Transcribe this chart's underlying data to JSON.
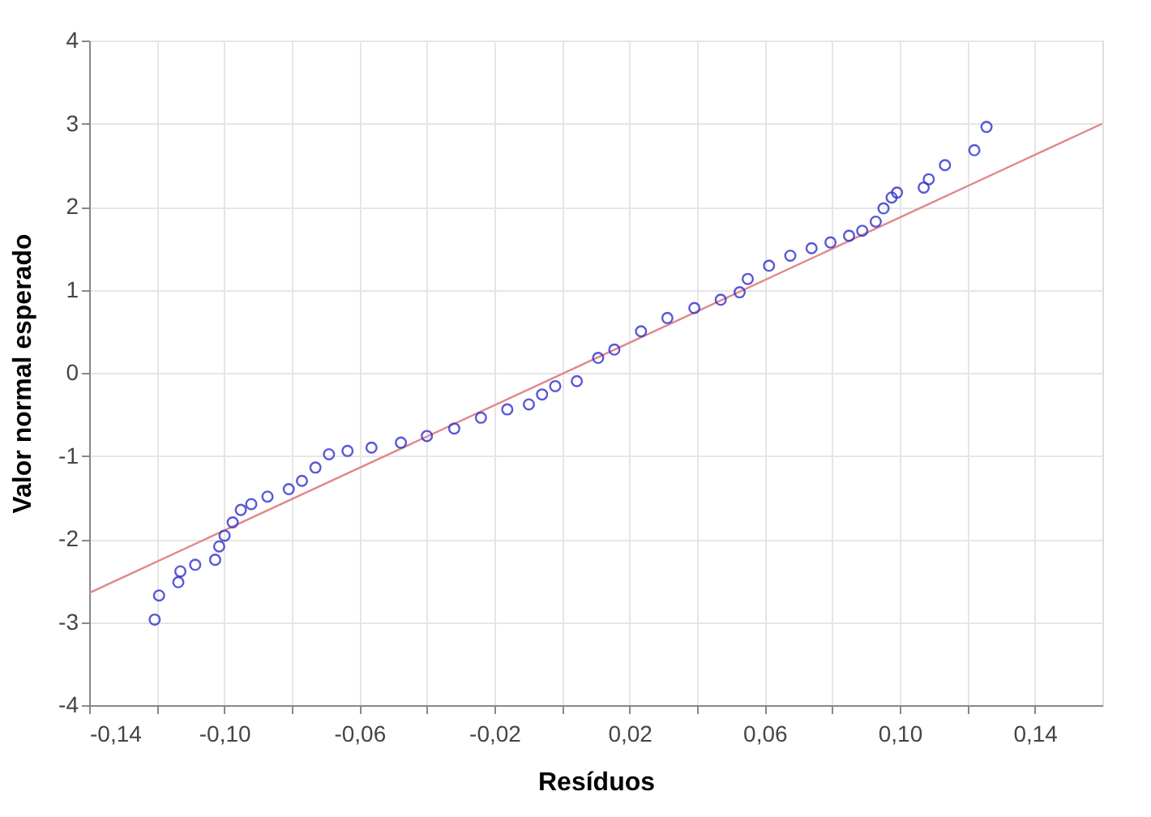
{
  "chart_data": {
    "type": "scatter",
    "xlabel": "Resíduos",
    "ylabel": "Valor normal esperado",
    "xlim": [
      -0.14,
      0.16
    ],
    "ylim": [
      -4,
      4
    ],
    "xticks": [
      {
        "value": -0.14,
        "label": "-0,14"
      },
      {
        "value": -0.12,
        "label": null
      },
      {
        "value": -0.1,
        "label": "-0,10"
      },
      {
        "value": -0.08,
        "label": null
      },
      {
        "value": -0.06,
        "label": "-0,06"
      },
      {
        "value": -0.04,
        "label": null
      },
      {
        "value": -0.02,
        "label": "-0,02"
      },
      {
        "value": 0.0,
        "label": null
      },
      {
        "value": 0.02,
        "label": "0,02"
      },
      {
        "value": 0.04,
        "label": null
      },
      {
        "value": 0.06,
        "label": "0,06"
      },
      {
        "value": 0.08,
        "label": null
      },
      {
        "value": 0.1,
        "label": "0,10"
      },
      {
        "value": 0.12,
        "label": null
      },
      {
        "value": 0.14,
        "label": "0,14"
      }
    ],
    "yticks": [
      -4,
      -3,
      -2,
      -1,
      0,
      1,
      2,
      3,
      4
    ],
    "grid": true,
    "series": [
      {
        "type": "line",
        "color": "#e08888",
        "line_style": "solid",
        "marker": "none",
        "x": [
          -0.14,
          0.16
        ],
        "values": [
          -2.65,
          3.0
        ]
      },
      {
        "color": "#3030cc",
        "marker": "circle",
        "x": [
          -0.1206,
          -0.1193,
          -0.1136,
          -0.113,
          -0.1086,
          -0.1027,
          -0.1015,
          -0.0999,
          -0.0975,
          -0.0951,
          -0.092,
          -0.0872,
          -0.0809,
          -0.077,
          -0.073,
          -0.069,
          -0.0635,
          -0.0564,
          -0.0477,
          -0.04,
          -0.0319,
          -0.024,
          -0.0162,
          -0.0098,
          -0.0059,
          -0.002,
          0.0044,
          0.0107,
          0.0155,
          0.0234,
          0.0312,
          0.0392,
          0.047,
          0.0526,
          0.055,
          0.0613,
          0.0676,
          0.0739,
          0.0795,
          0.085,
          0.0889,
          0.0929,
          0.0952,
          0.0976,
          0.0992,
          0.1071,
          0.1086,
          0.1134,
          0.1221,
          0.1257
        ],
        "values": [
          -2.97,
          -2.68,
          -2.52,
          -2.39,
          -2.31,
          -2.25,
          -2.09,
          -1.96,
          -1.8,
          -1.65,
          -1.58,
          -1.49,
          -1.4,
          -1.3,
          -1.14,
          -0.98,
          -0.94,
          -0.9,
          -0.84,
          -0.76,
          -0.67,
          -0.54,
          -0.44,
          -0.38,
          -0.26,
          -0.16,
          -0.1,
          0.18,
          0.28,
          0.5,
          0.66,
          0.78,
          0.88,
          0.97,
          1.13,
          1.29,
          1.41,
          1.5,
          1.57,
          1.65,
          1.71,
          1.82,
          1.98,
          2.11,
          2.17,
          2.23,
          2.33,
          2.5,
          2.68,
          2.96
        ]
      }
    ]
  }
}
